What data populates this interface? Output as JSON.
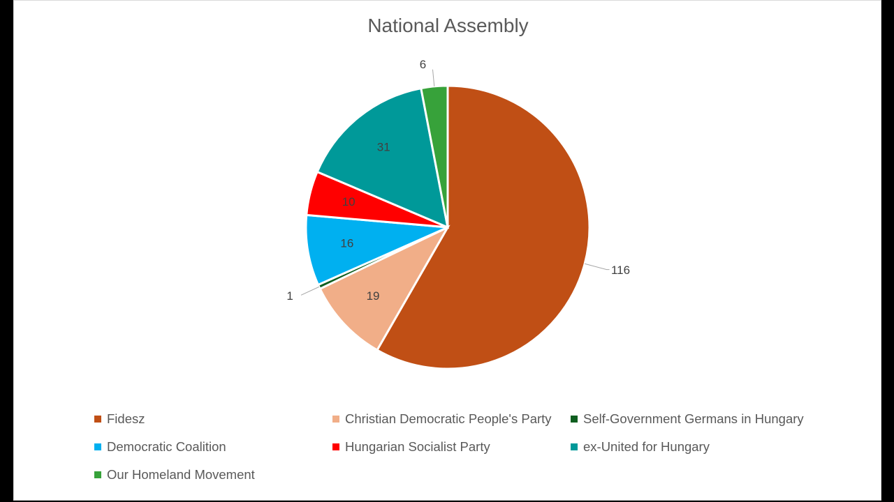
{
  "chart_data": {
    "type": "pie",
    "title": "National Assembly",
    "categories": [
      "Fidesz",
      "Christian Democratic People's Party",
      "Self-Government Germans in Hungary",
      "Democratic Coalition",
      "Hungarian Socialist Party",
      "ex-United for Hungary",
      "Our Homeland Movement"
    ],
    "values": [
      116,
      19,
      1,
      16,
      10,
      31,
      6
    ],
    "colors": [
      "#C04F15",
      "#F1AE88",
      "#0E5E1F",
      "#00B0F0",
      "#FF0000",
      "#009999",
      "#37A23A"
    ],
    "label_colors": [
      "#404040",
      "#404040",
      "#404040",
      "#404040",
      "#404040",
      "#404040",
      "#404040"
    ],
    "legend_position": "bottom"
  }
}
